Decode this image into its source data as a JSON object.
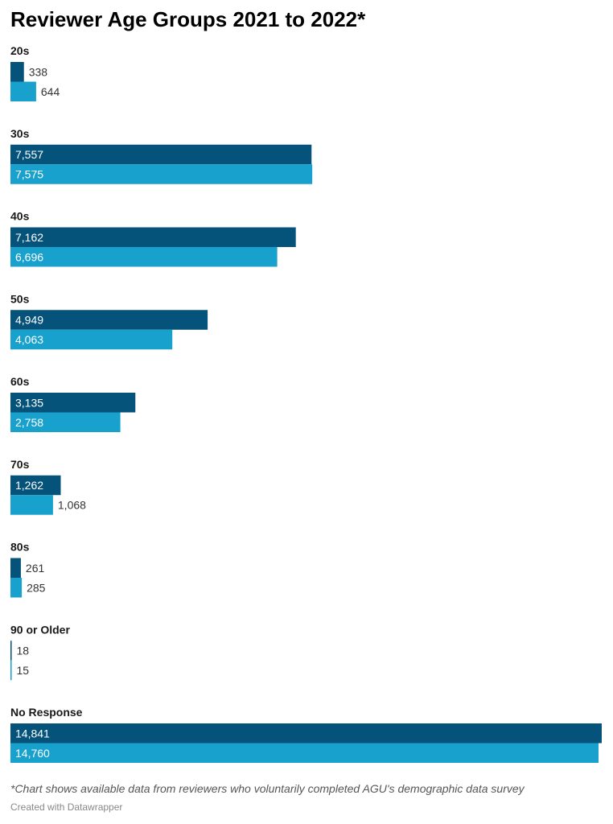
{
  "chart_data": {
    "type": "bar",
    "orientation": "horizontal",
    "title": "Reviewer Age Groups 2021 to 2022*",
    "categories": [
      "20s",
      "30s",
      "40s",
      "50s",
      "60s",
      "70s",
      "80s",
      "90 or Older",
      "No Response"
    ],
    "series": [
      {
        "values": [
          338,
          7557,
          7162,
          4949,
          3135,
          1262,
          261,
          18,
          14841
        ],
        "color": "#05527a"
      },
      {
        "values": [
          644,
          7575,
          6696,
          4063,
          2758,
          1068,
          285,
          15,
          14760
        ],
        "color": "#18a1cd"
      }
    ],
    "xlim": [
      0,
      14841
    ],
    "grid": false,
    "notes": "*Chart shows available data from reviewers who voluntarily completed AGU's demographic data survey",
    "credit": "Created with Datawrapper"
  }
}
